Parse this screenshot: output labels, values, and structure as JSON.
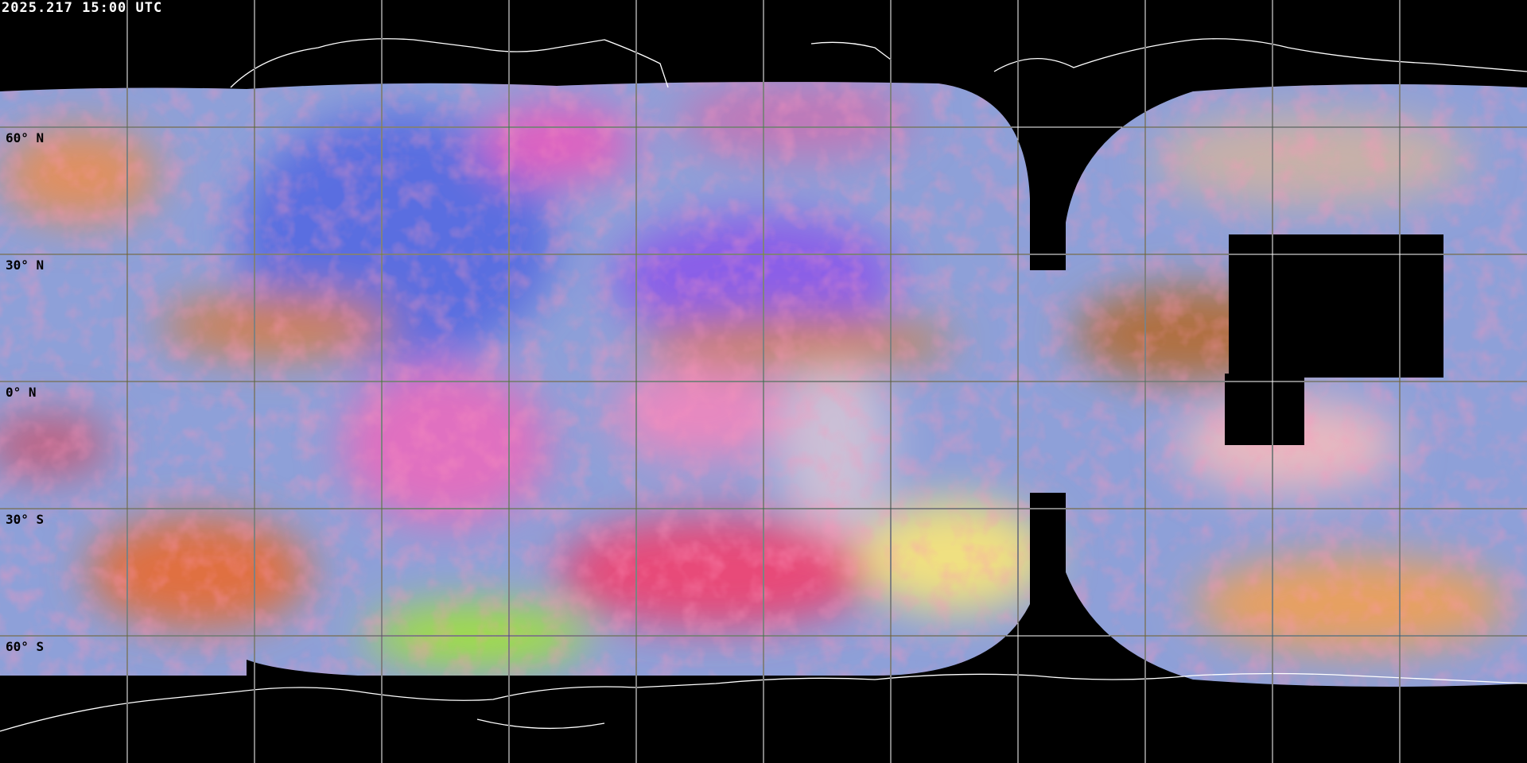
{
  "title": "2025.217 15:00 UTC",
  "lat_labels": [
    "60° N",
    "30° N",
    "0° N",
    "30° S",
    "60° S"
  ],
  "colors": {
    "background": "#000000",
    "gridlines": "#ffffff",
    "coastlines": "#ffffff",
    "label_text": "#000000"
  },
  "imagery": "satellite false-color composite"
}
